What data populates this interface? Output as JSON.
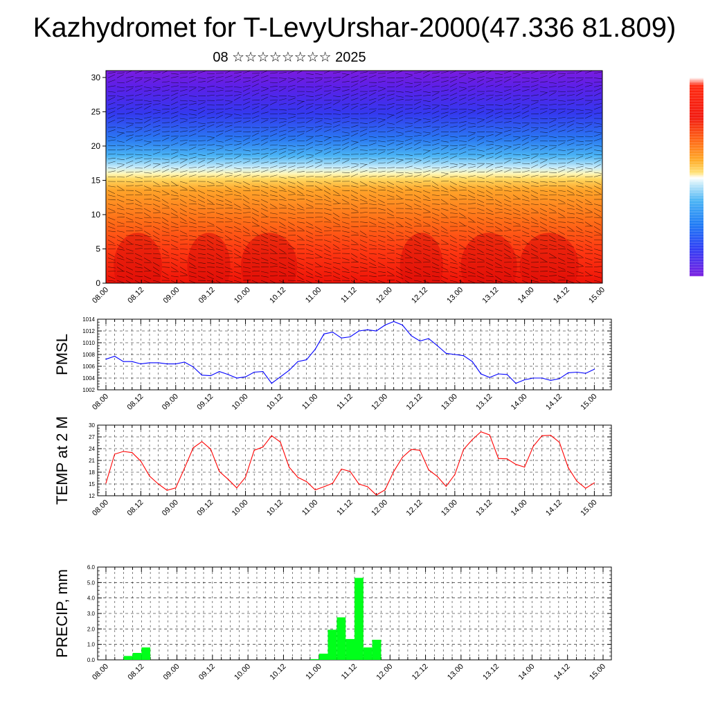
{
  "header": {
    "title": "Kazhydromet for T-LevyUrshar-2000(47.336 81.809)",
    "subtitle": "08 ☆☆☆☆☆☆☆☆ 2025"
  },
  "time_axis_labels": [
    "08.00",
    "08.12",
    "09.00",
    "09.12",
    "10.00",
    "10.12",
    "11.00",
    "11.12",
    "12.00",
    "12.12",
    "13.00",
    "13.12",
    "14.00",
    "14.12",
    "15.00"
  ],
  "chart_data": [
    {
      "type": "heatmap",
      "name": "cross-section",
      "x_tick_labels": [
        "08.00",
        "08.12",
        "09.00",
        "09.12",
        "10.00",
        "10.12",
        "11.00",
        "11.12",
        "12.00",
        "12.12",
        "13.00",
        "13.12",
        "14.00",
        "14.12",
        "15.00"
      ],
      "y_ticks": [
        0,
        5,
        10,
        15,
        20,
        25,
        30
      ],
      "ylim": [
        0,
        31
      ],
      "colormap": [
        "#7b1fe0",
        "#4a2cf0",
        "#2f4ff5",
        "#1f7bf5",
        "#1fa8f0",
        "#6fd0f5",
        "#cfeefa",
        "#fff5a0",
        "#ffd24a",
        "#ffae2a",
        "#ff8a1a",
        "#ff5a10",
        "#ff2a10",
        "#e01010"
      ],
      "zones": [
        {
          "y_from": 0,
          "y_to": 6,
          "color": "#f21a10"
        },
        {
          "y_from": 6,
          "y_to": 12,
          "color": "#ff6a16"
        },
        {
          "y_from": 12,
          "y_to": 15,
          "color": "#ffa82a"
        },
        {
          "y_from": 15,
          "y_to": 16.5,
          "color": "#fff0a0"
        },
        {
          "y_from": 16.5,
          "y_to": 19,
          "color": "#8fd8f8"
        },
        {
          "y_from": 19,
          "y_to": 23,
          "color": "#2f8ff5"
        },
        {
          "y_from": 23,
          "y_to": 27,
          "color": "#3a3cf2"
        },
        {
          "y_from": 27,
          "y_to": 31,
          "color": "#6a22e6"
        }
      ]
    },
    {
      "type": "line",
      "name": "pmsl",
      "ylabel": "PMSL",
      "ylim": [
        1002,
        1014
      ],
      "y_ticks": [
        1002,
        1004,
        1006,
        1008,
        1010,
        1012,
        1014
      ],
      "x_tick_labels": [
        "08.00",
        "08.12",
        "09.00",
        "09.12",
        "10.00",
        "10.12",
        "11.00",
        "11.12",
        "12.00",
        "12.12",
        "13.00",
        "13.12",
        "14.00",
        "14.12",
        "15.00"
      ],
      "grid": true,
      "color": "#0000ff",
      "x_step_hours": 3,
      "values": [
        1007.2,
        1007.7,
        1006.8,
        1006.8,
        1006.4,
        1006.6,
        1006.6,
        1006.4,
        1006.4,
        1006.7,
        1005.9,
        1004.5,
        1004.4,
        1005.1,
        1004.6,
        1004.0,
        1004.2,
        1005.0,
        1005.1,
        1003.1,
        1004.2,
        1005.3,
        1006.8,
        1007.1,
        1008.9,
        1011.5,
        1011.8,
        1010.8,
        1011.0,
        1012.0,
        1012.2,
        1012.0,
        1013.0,
        1013.6,
        1013.0,
        1011.2,
        1010.3,
        1010.7,
        1009.5,
        1008.2,
        1008.0,
        1007.8,
        1006.8,
        1004.7,
        1004.1,
        1004.7,
        1004.6,
        1003.1,
        1003.7,
        1004.0,
        1004.0,
        1003.6,
        1003.9,
        1004.9,
        1005.0,
        1004.8,
        1005.5
      ]
    },
    {
      "type": "line",
      "name": "temp2m",
      "ylabel": "TEMP at 2 M",
      "ylim": [
        12,
        30
      ],
      "y_ticks": [
        12,
        15,
        18,
        21,
        24,
        27,
        30
      ],
      "x_tick_labels": [
        "08.00",
        "08.12",
        "09.00",
        "09.12",
        "10.00",
        "10.12",
        "11.00",
        "11.12",
        "12.00",
        "12.12",
        "13.00",
        "13.12",
        "14.00",
        "14.12",
        "15.00"
      ],
      "grid": true,
      "color": "#ff0000",
      "x_step_hours": 3,
      "values": [
        15.2,
        22.6,
        23.3,
        23.0,
        20.8,
        17.0,
        15.0,
        13.4,
        14.0,
        19.0,
        24.2,
        25.8,
        23.9,
        18.2,
        16.2,
        14.0,
        16.7,
        23.6,
        24.4,
        27.3,
        25.7,
        19.3,
        16.7,
        15.6,
        13.5,
        14.3,
        15.2,
        18.8,
        18.2,
        15.0,
        14.3,
        12.2,
        13.5,
        18.2,
        21.8,
        23.8,
        23.6,
        18.6,
        16.9,
        14.4,
        17.4,
        23.8,
        26.3,
        28.3,
        27.5,
        21.5,
        21.4,
        20.0,
        19.3,
        24.6,
        27.3,
        27.4,
        25.6,
        19.2,
        15.7,
        13.9,
        15.3
      ]
    },
    {
      "type": "bar",
      "name": "precip",
      "ylabel": "PRECIP, mm",
      "ylim": [
        0,
        6
      ],
      "y_ticks": [
        "0.0",
        "1.0",
        "2.0",
        "3.0",
        "4.0",
        "5.0",
        "6.0"
      ],
      "x_tick_labels": [
        "08.00",
        "08.12",
        "09.00",
        "09.12",
        "10.00",
        "10.12",
        "11.00",
        "11.12",
        "12.00",
        "12.12",
        "13.00",
        "13.12",
        "14.00",
        "14.12",
        "15.00"
      ],
      "grid": true,
      "color": "#00ff1a",
      "x_step_hours": 3,
      "values": [
        0,
        0,
        0.25,
        0.45,
        0.8,
        0,
        0,
        0,
        0,
        0,
        0,
        0,
        0,
        0,
        0,
        0,
        0,
        0,
        0,
        0,
        0,
        0,
        0,
        0.05,
        0.4,
        1.95,
        2.75,
        1.35,
        5.3,
        0.8,
        1.3,
        0,
        0,
        0,
        0,
        0,
        0,
        0,
        0,
        0,
        0,
        0,
        0,
        0,
        0,
        0,
        0,
        0,
        0,
        0,
        0,
        0,
        0,
        0,
        0,
        0
      ]
    }
  ]
}
